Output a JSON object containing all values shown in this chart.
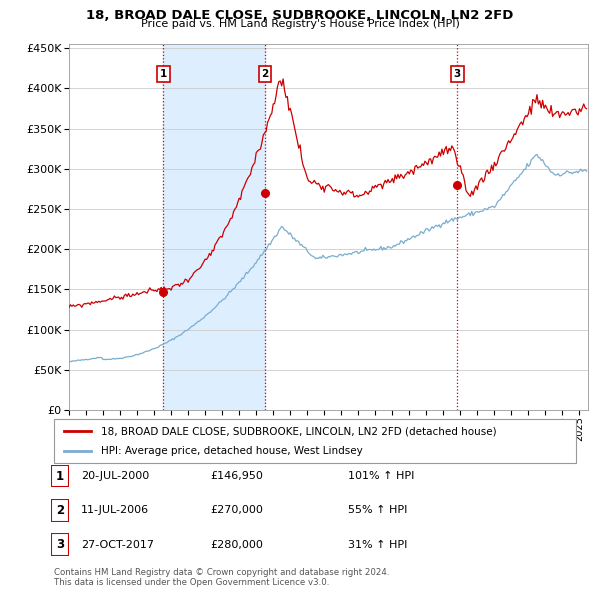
{
  "title": "18, BROAD DALE CLOSE, SUDBROOKE, LINCOLN, LN2 2FD",
  "subtitle": "Price paid vs. HM Land Registry's House Price Index (HPI)",
  "property_label": "18, BROAD DALE CLOSE, SUDBROOKE, LINCOLN, LN2 2FD (detached house)",
  "hpi_label": "HPI: Average price, detached house, West Lindsey",
  "sale_points": [
    {
      "num": 1,
      "date": "20-JUL-2000",
      "price": 146950,
      "pct": "101% ↑ HPI",
      "x_year": 2000.55
    },
    {
      "num": 2,
      "date": "11-JUL-2006",
      "price": 270000,
      "pct": "55% ↑ HPI",
      "x_year": 2006.53
    },
    {
      "num": 3,
      "date": "27-OCT-2017",
      "price": 280000,
      "pct": "31% ↑ HPI",
      "x_year": 2017.82
    }
  ],
  "footnote1": "Contains HM Land Registry data © Crown copyright and database right 2024.",
  "footnote2": "This data is licensed under the Open Government Licence v3.0.",
  "ylim": [
    0,
    455000
  ],
  "yticks": [
    0,
    50000,
    100000,
    150000,
    200000,
    250000,
    300000,
    350000,
    400000,
    450000
  ],
  "xlim_start": 1995.0,
  "xlim_end": 2025.5,
  "property_color": "#cc0000",
  "hpi_color": "#7aadce",
  "vline_color": "#cc0000",
  "shade_color": "#ddeeff",
  "background_color": "#ffffff",
  "grid_color": "#cccccc"
}
